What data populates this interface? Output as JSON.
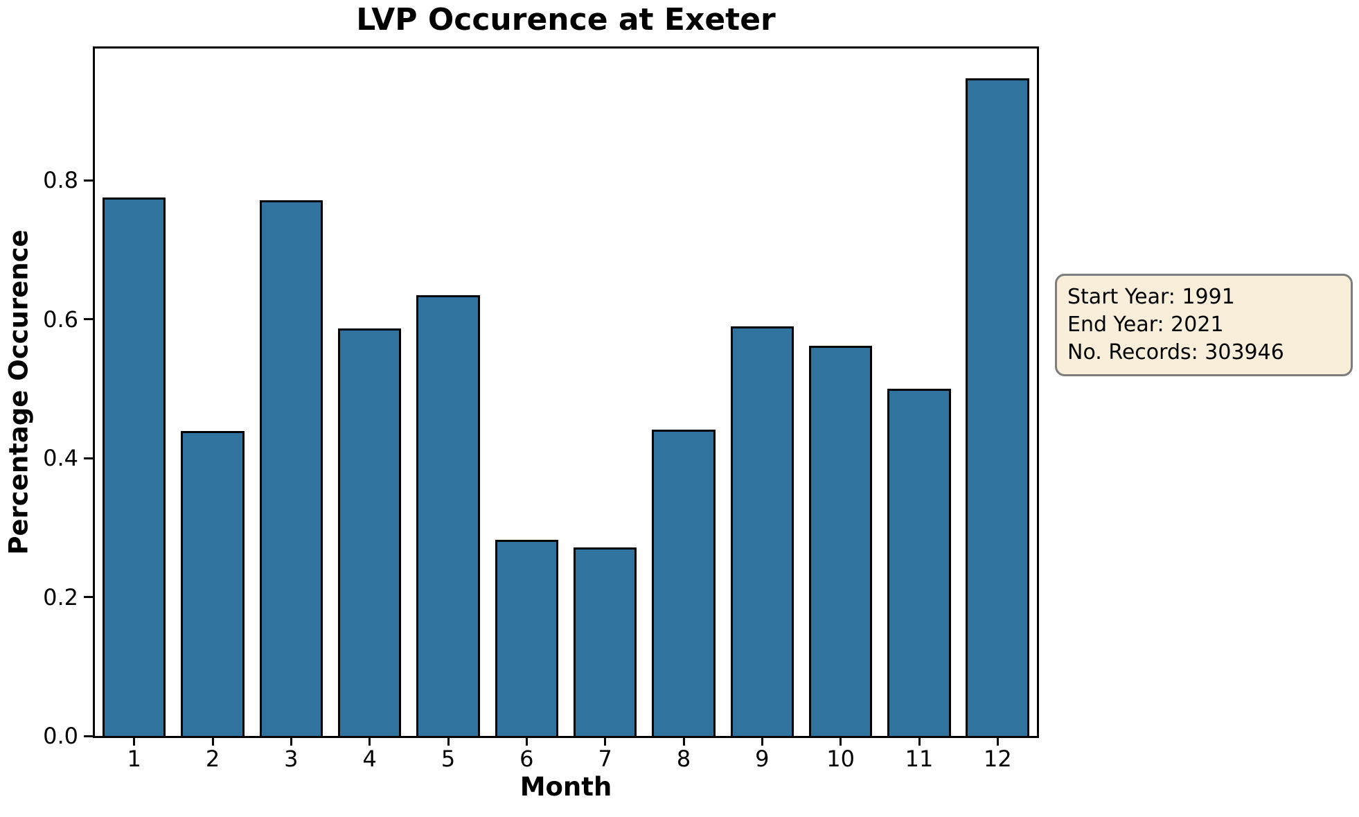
{
  "title": "LVP Occurence at Exeter",
  "annotation": {
    "lines": [
      "Start Year: 1991",
      "End Year: 2021",
      "No. Records: 303946"
    ]
  },
  "colors": {
    "bar_fill": "#30739F",
    "bar_edge": "#000000",
    "axis": "#000000",
    "annotation_bg": "#F8EEDA",
    "annotation_border": "#7D7D7D"
  },
  "chart_data": {
    "type": "bar",
    "title": "LVP Occurence at Exeter",
    "xlabel": "Month",
    "ylabel": "Percentage Occurence",
    "categories": [
      "1",
      "2",
      "3",
      "4",
      "5",
      "6",
      "7",
      "8",
      "9",
      "10",
      "11",
      "12"
    ],
    "values": [
      0.775,
      0.439,
      0.771,
      0.587,
      0.635,
      0.282,
      0.271,
      0.441,
      0.59,
      0.562,
      0.5,
      0.947
    ],
    "ytick_labels": [
      "0.0",
      "0.2",
      "0.4",
      "0.6",
      "0.8"
    ],
    "ytick_values": [
      0.0,
      0.2,
      0.4,
      0.6,
      0.8
    ],
    "ylim": [
      0,
      0.99
    ],
    "grid": false,
    "legend": null,
    "annotation_text": "Start Year: 1991\nEnd Year: 2021\nNo. Records: 303946"
  }
}
